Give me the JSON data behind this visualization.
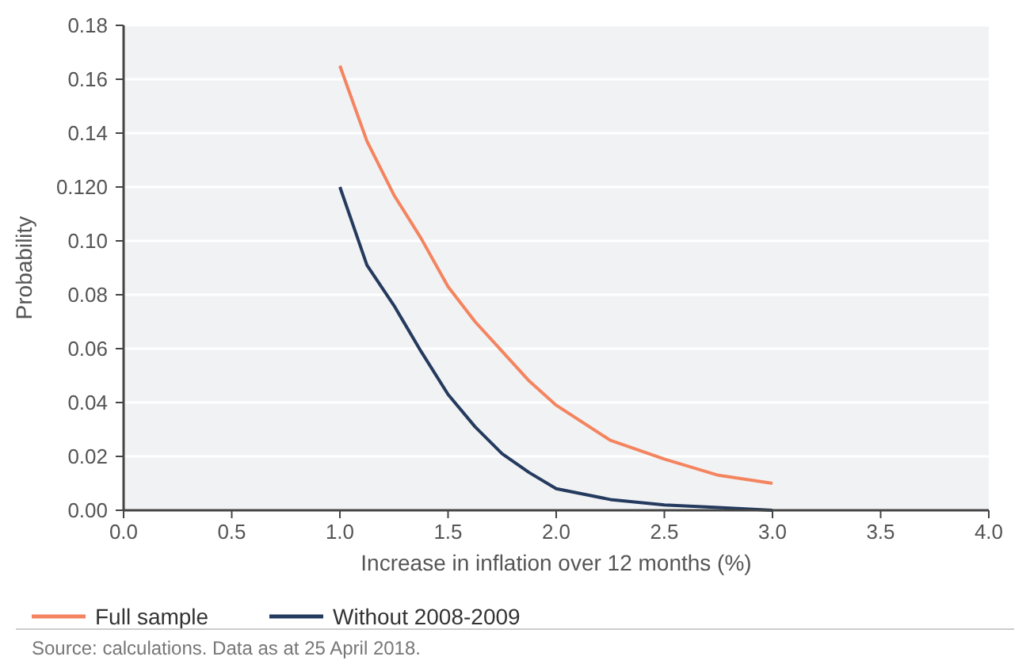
{
  "chart_data": {
    "type": "line",
    "xlabel": "Increase in inflation over 12 months (%)",
    "ylabel": "Probability",
    "xlim": [
      0,
      4
    ],
    "xticks": [
      {
        "value": 0,
        "label": "0.0"
      },
      {
        "value": 0.5,
        "label": "0.5"
      },
      {
        "value": 1,
        "label": "1.0"
      },
      {
        "value": 1.5,
        "label": "1.5"
      },
      {
        "value": 2,
        "label": "2.0"
      },
      {
        "value": 2.5,
        "label": "2.5"
      },
      {
        "value": 3,
        "label": "3.0"
      },
      {
        "value": 3.5,
        "label": "3.5"
      },
      {
        "value": 4,
        "label": "4.0"
      }
    ],
    "ylim": [
      0,
      0.18
    ],
    "yticks": [
      {
        "value": 0,
        "label": "0.00"
      },
      {
        "value": 0.02,
        "label": "0.02"
      },
      {
        "value": 0.04,
        "label": "0.04"
      },
      {
        "value": 0.06,
        "label": "0.06"
      },
      {
        "value": 0.08,
        "label": "0.08"
      },
      {
        "value": 0.1,
        "label": "0.10"
      },
      {
        "value": 0.12,
        "label": "0.120"
      },
      {
        "value": 0.14,
        "label": "0.14"
      },
      {
        "value": 0.16,
        "label": "0.16"
      },
      {
        "value": 0.18,
        "label": "0.18"
      }
    ],
    "grid": "y",
    "legend": "bottom",
    "marker": "none",
    "line_style": "solid",
    "series": [
      {
        "name": "Full sample",
        "color": "#f4845f",
        "x": [
          1.0,
          1.125,
          1.25,
          1.375,
          1.5,
          1.625,
          1.75,
          1.875,
          2.0,
          2.25,
          2.5,
          2.75,
          3.0
        ],
        "values": [
          0.165,
          0.137,
          0.117,
          0.101,
          0.083,
          0.07,
          0.059,
          0.048,
          0.039,
          0.026,
          0.019,
          0.013,
          0.01
        ]
      },
      {
        "name": "Without 2008-2009",
        "color": "#243a5e",
        "x": [
          1.0,
          1.125,
          1.25,
          1.375,
          1.5,
          1.625,
          1.75,
          1.875,
          2.0,
          2.25,
          2.5,
          2.75,
          3.0
        ],
        "values": [
          0.12,
          0.091,
          0.076,
          0.059,
          0.043,
          0.031,
          0.021,
          0.014,
          0.008,
          0.004,
          0.002,
          0.001,
          0.0
        ]
      }
    ],
    "annotations": [
      "Source: calculations. Data as at 25 April 2018."
    ]
  }
}
